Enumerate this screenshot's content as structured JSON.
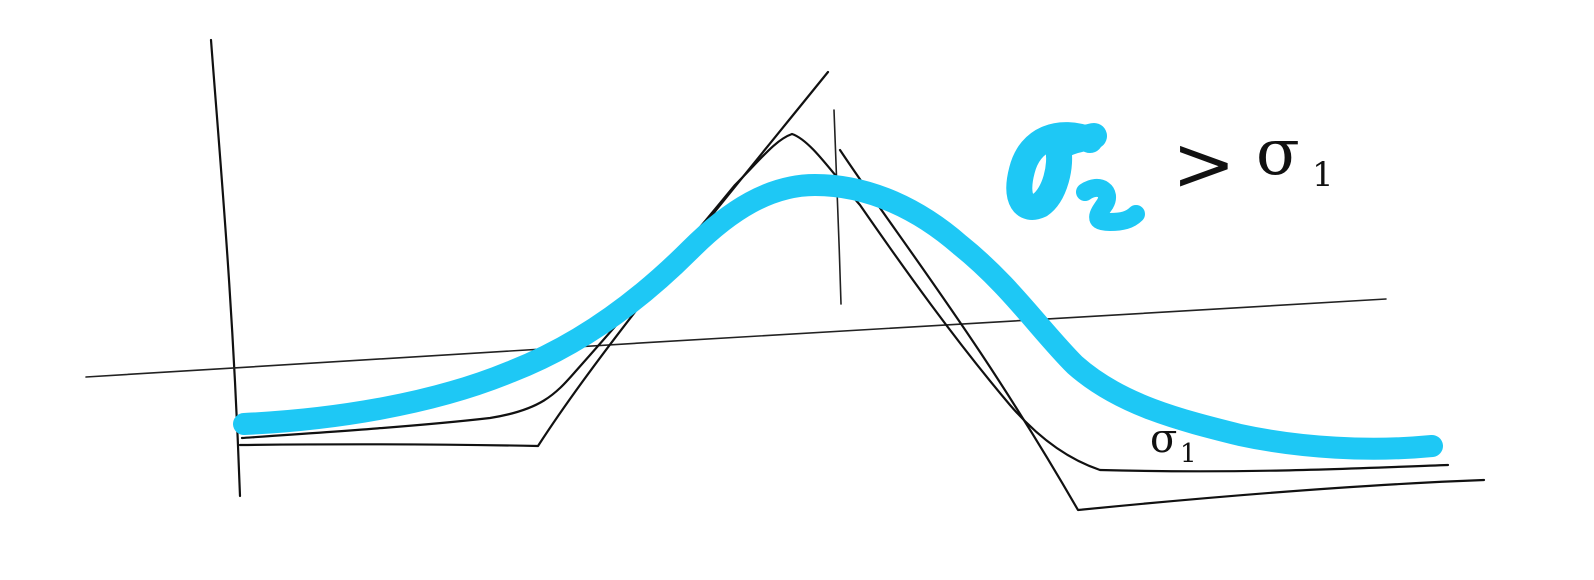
{
  "colors": {
    "background": "#ffffff",
    "ink": "#111111",
    "highlight": "#1ec8f5"
  },
  "annotations": {
    "comparison_symbol": ">",
    "sigma_one_label": "σ",
    "sigma_one_subscript": "1",
    "curve_label": "σ",
    "curve_label_subscript": "1"
  }
}
